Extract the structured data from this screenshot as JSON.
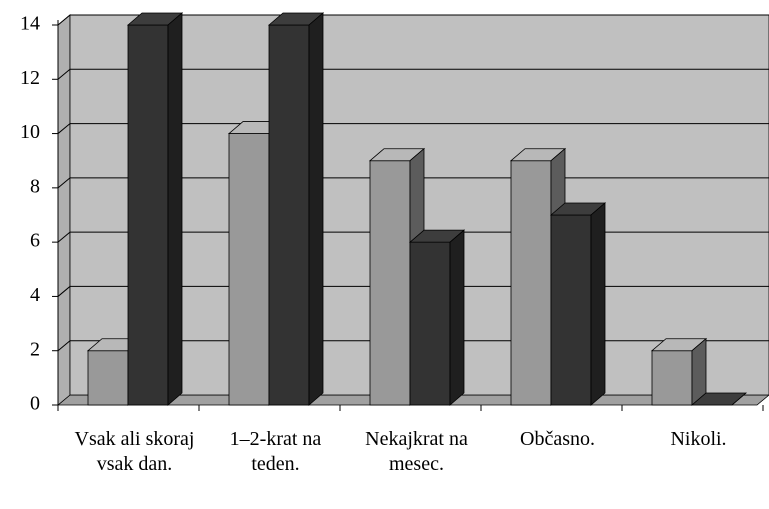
{
  "chart_data": {
    "type": "bar3d",
    "categories": [
      "Vsak ali skoraj vsak dan.",
      "1–2-krat na teden.",
      "Nekajkrat na mesec.",
      "Občasno.",
      "Nikoli."
    ],
    "series": [
      {
        "color": "#999999",
        "values": [
          2,
          10,
          9,
          9,
          2
        ]
      },
      {
        "color": "#333333",
        "values": [
          14,
          14,
          6,
          7,
          0
        ]
      }
    ],
    "ylim": [
      0,
      14
    ],
    "yticks": [
      0,
      2,
      4,
      6,
      8,
      10,
      12,
      14
    ],
    "grid": true
  }
}
